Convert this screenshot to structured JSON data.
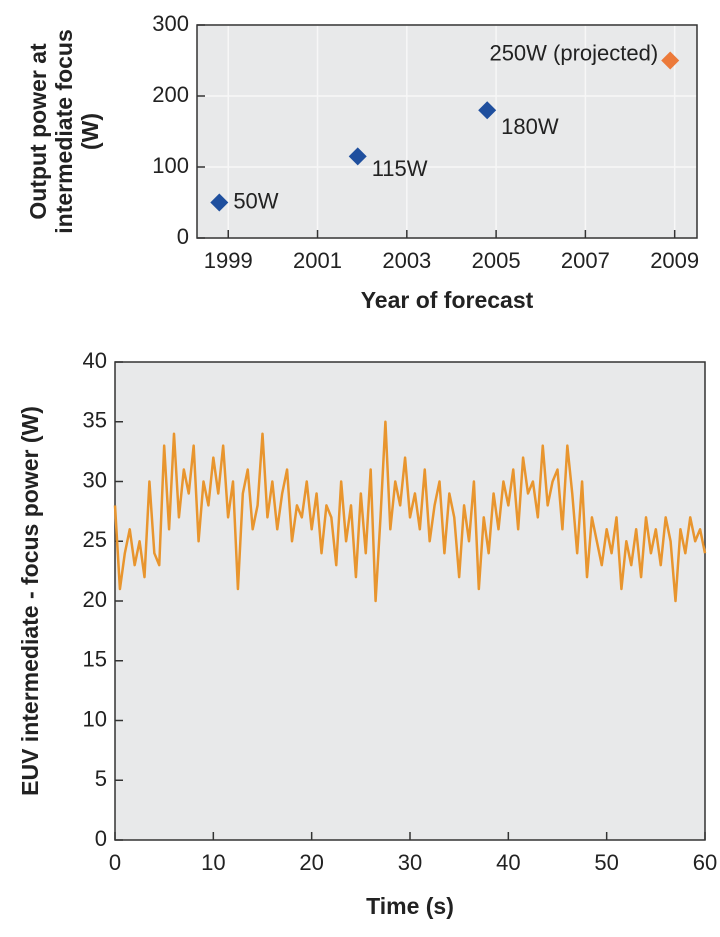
{
  "chart_data": [
    {
      "type": "scatter",
      "x": [
        1998.8,
        2001.9,
        2004.8,
        2008.9
      ],
      "values": [
        50,
        115,
        180,
        250
      ],
      "value_labels": [
        "50W",
        "115W",
        "180W",
        "250W (projected)"
      ],
      "colors": [
        "#1f4f9e",
        "#1f4f9e",
        "#1f4f9e",
        "#ec7a3a"
      ],
      "xlim": [
        1998.3,
        2009.5
      ],
      "xticks": [
        1999,
        2001,
        2003,
        2005,
        2007,
        2009
      ],
      "ylim": [
        0,
        300
      ],
      "yticks": [
        0,
        100,
        200,
        300
      ],
      "xlabel": "Year of forecast",
      "ylabel": [
        "Output power at",
        "intermediate focus",
        "(W)"
      ],
      "grid": true
    },
    {
      "type": "line",
      "x": [
        0,
        0.5,
        1,
        1.5,
        2,
        2.5,
        3,
        3.5,
        4,
        4.5,
        5,
        5.5,
        6,
        6.5,
        7,
        7.5,
        8,
        8.5,
        9,
        9.5,
        10,
        10.5,
        11,
        11.5,
        12,
        12.5,
        13,
        13.5,
        14,
        14.5,
        15,
        15.5,
        16,
        16.5,
        17,
        17.5,
        18,
        18.5,
        19,
        19.5,
        20,
        20.5,
        21,
        21.5,
        22,
        22.5,
        23,
        23.5,
        24,
        24.5,
        25,
        25.5,
        26,
        26.5,
        27,
        27.5,
        28,
        28.5,
        29,
        29.5,
        30,
        30.5,
        31,
        31.5,
        32,
        32.5,
        33,
        33.5,
        34,
        34.5,
        35,
        35.5,
        36,
        36.5,
        37,
        37.5,
        38,
        38.5,
        39,
        39.5,
        40,
        40.5,
        41,
        41.5,
        42,
        42.5,
        43,
        43.5,
        44,
        44.5,
        45,
        45.5,
        46,
        46.5,
        47,
        47.5,
        48,
        48.5,
        49,
        49.5,
        50,
        50.5,
        51,
        51.5,
        52,
        52.5,
        53,
        53.5,
        54,
        54.5,
        55,
        55.5,
        56,
        56.5,
        57,
        57.5,
        58,
        58.5,
        59,
        59.5,
        60
      ],
      "values": [
        28,
        21,
        24,
        26,
        23,
        25,
        22,
        30,
        24,
        23,
        33,
        26,
        34,
        27,
        31,
        29,
        33,
        25,
        30,
        28,
        32,
        29,
        33,
        27,
        30,
        21,
        29,
        31,
        26,
        28,
        34,
        27,
        30,
        26,
        29,
        31,
        25,
        28,
        27,
        30,
        26,
        29,
        24,
        28,
        27,
        23,
        30,
        25,
        28,
        22,
        29,
        24,
        31,
        20,
        27,
        35,
        26,
        30,
        28,
        32,
        27,
        29,
        26,
        31,
        25,
        28,
        30,
        24,
        29,
        27,
        22,
        28,
        25,
        30,
        21,
        27,
        24,
        29,
        26,
        30,
        28,
        31,
        26,
        32,
        29,
        30,
        27,
        33,
        28,
        30,
        31,
        26,
        33,
        29,
        24,
        30,
        22,
        27,
        25,
        23,
        26,
        24,
        27,
        21,
        25,
        23,
        26,
        22,
        27,
        24,
        26,
        23,
        27,
        25,
        20,
        26,
        24,
        27,
        25,
        26,
        24
      ],
      "color": "#e8952e",
      "xlim": [
        0,
        60
      ],
      "xticks": [
        0,
        10,
        20,
        30,
        40,
        50,
        60
      ],
      "ylim": [
        0,
        40
      ],
      "yticks": [
        0,
        5,
        10,
        15,
        20,
        25,
        30,
        35,
        40
      ],
      "xlabel": "Time (s)",
      "ylabel": "EUV intermediate - focus power (W)"
    }
  ]
}
